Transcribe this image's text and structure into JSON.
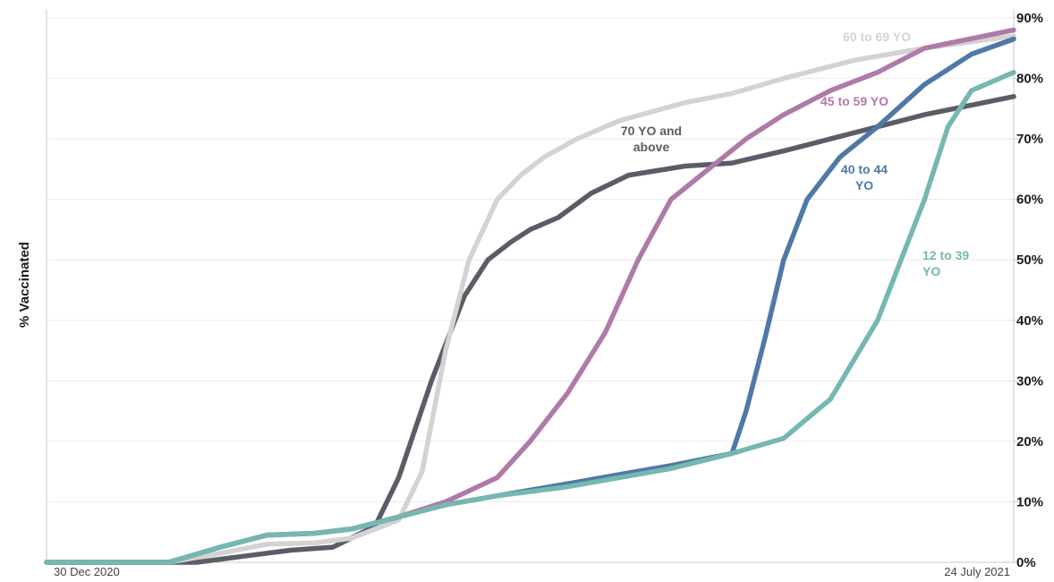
{
  "chart_data": {
    "type": "line",
    "title": "",
    "xlabel": "",
    "ylabel": "% Vaccinated",
    "x_start_label": "30 Dec 2020",
    "x_end_label": "24 July 2021",
    "x_range": [
      "2020-12-30",
      "2021-07-24"
    ],
    "ylim": [
      0,
      90
    ],
    "yticks": [
      "0%",
      "10%",
      "20%",
      "30%",
      "40%",
      "50%",
      "60%",
      "70%",
      "80%",
      "90%"
    ],
    "grid": true,
    "legend": "inline labels",
    "series": [
      {
        "name": "70 YO and above",
        "label_lines": [
          "70 YO and",
          "above"
        ],
        "color": "#5a5d66",
        "x": [
          "2020-12-30",
          "2021-01-31",
          "2021-02-10",
          "2021-02-20",
          "2021-03-01",
          "2021-03-10",
          "2021-03-15",
          "2021-03-22",
          "2021-03-29",
          "2021-04-03",
          "2021-04-08",
          "2021-04-12",
          "2021-04-18",
          "2021-04-25",
          "2021-05-03",
          "2021-05-15",
          "2021-05-25",
          "2021-06-05",
          "2021-06-15",
          "2021-06-25",
          "2021-07-05",
          "2021-07-24"
        ],
        "values": [
          0,
          0,
          1,
          2,
          2.5,
          6,
          14,
          30,
          44,
          50,
          53,
          55,
          57,
          61,
          64,
          65.5,
          66,
          68,
          70,
          72,
          74,
          77
        ]
      },
      {
        "name": "60 to 69 YO",
        "color": "#d3d3d3",
        "x": [
          "2020-12-30",
          "2021-01-25",
          "2021-02-05",
          "2021-02-15",
          "2021-02-25",
          "2021-03-05",
          "2021-03-15",
          "2021-03-20",
          "2021-03-25",
          "2021-03-30",
          "2021-04-05",
          "2021-04-10",
          "2021-04-15",
          "2021-04-22",
          "2021-05-01",
          "2021-05-15",
          "2021-05-25",
          "2021-06-05",
          "2021-06-20",
          "2021-07-05",
          "2021-07-24"
        ],
        "values": [
          0,
          0,
          1.5,
          3,
          3.2,
          4,
          7,
          15,
          35,
          50,
          60,
          64,
          67,
          70,
          73,
          76,
          77.5,
          80,
          83,
          85,
          87
        ]
      },
      {
        "name": "45 to 59 YO",
        "color": "#b07aa8",
        "x": [
          "2020-12-30",
          "2021-01-25",
          "2021-02-05",
          "2021-02-15",
          "2021-02-25",
          "2021-03-05",
          "2021-03-15",
          "2021-03-25",
          "2021-04-05",
          "2021-04-12",
          "2021-04-20",
          "2021-04-28",
          "2021-05-05",
          "2021-05-12",
          "2021-05-20",
          "2021-05-28",
          "2021-06-05",
          "2021-06-15",
          "2021-06-25",
          "2021-07-05",
          "2021-07-24"
        ],
        "values": [
          0,
          0,
          2.5,
          4.5,
          4.8,
          5.5,
          7.5,
          10,
          14,
          20,
          28,
          38,
          50,
          60,
          65,
          70,
          74,
          78,
          81,
          85,
          88
        ]
      },
      {
        "name": "40 to 44 YO",
        "label_lines": [
          "40 to 44",
          "YO"
        ],
        "color": "#4e79a7",
        "x": [
          "2020-12-30",
          "2021-01-25",
          "2021-02-05",
          "2021-02-15",
          "2021-02-25",
          "2021-03-05",
          "2021-03-15",
          "2021-03-25",
          "2021-04-05",
          "2021-04-20",
          "2021-05-01",
          "2021-05-12",
          "2021-05-25",
          "2021-05-28",
          "2021-06-01",
          "2021-06-05",
          "2021-06-10",
          "2021-06-17",
          "2021-06-25",
          "2021-07-05",
          "2021-07-15",
          "2021-07-24"
        ],
        "values": [
          0,
          0,
          2.5,
          4.5,
          4.8,
          5.5,
          7.5,
          9.5,
          11,
          13,
          14.5,
          16,
          18,
          25,
          37,
          50,
          60,
          67,
          72,
          79,
          84,
          86.5
        ]
      },
      {
        "name": "12 to 39 YO",
        "label_lines": [
          "12 to 39",
          "YO"
        ],
        "color": "#76b7b2",
        "x": [
          "2020-12-30",
          "2021-01-25",
          "2021-02-05",
          "2021-02-15",
          "2021-02-25",
          "2021-03-05",
          "2021-03-15",
          "2021-03-25",
          "2021-04-05",
          "2021-04-20",
          "2021-05-01",
          "2021-05-12",
          "2021-05-25",
          "2021-06-05",
          "2021-06-15",
          "2021-06-25",
          "2021-07-05",
          "2021-07-10",
          "2021-07-15",
          "2021-07-24"
        ],
        "values": [
          0,
          0,
          2.5,
          4.5,
          4.8,
          5.5,
          7.5,
          9.5,
          11,
          12.5,
          14,
          15.5,
          18,
          20.5,
          27,
          40,
          60,
          72,
          78,
          81
        ]
      }
    ]
  }
}
